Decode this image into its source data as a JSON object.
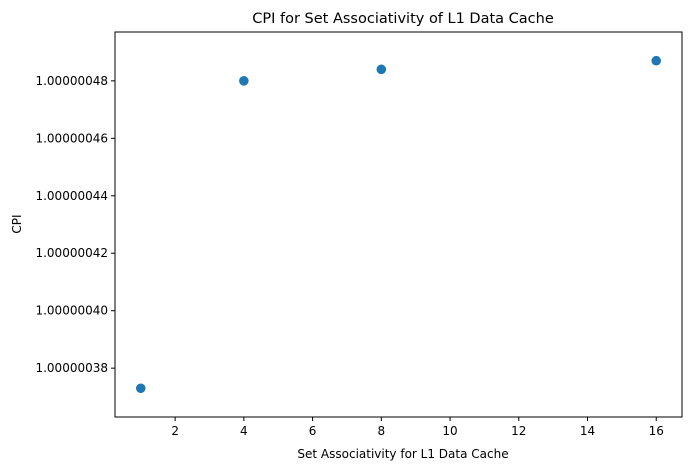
{
  "chart_data": {
    "type": "scatter",
    "title": "CPI for Set Associativity of L1 Data Cache",
    "xlabel": "Set Associativity for L1 Data Cache",
    "ylabel": "CPI",
    "x": [
      1,
      4,
      8,
      16
    ],
    "y": [
      1.000000373,
      1.00000048,
      1.000000484,
      1.000000487
    ],
    "xlim": [
      0.25,
      16.75
    ],
    "ylim": [
      1.000000363,
      1.000000497
    ],
    "xticks": [
      2,
      4,
      6,
      8,
      10,
      12,
      14,
      16
    ],
    "xtick_labels": [
      "2",
      "4",
      "6",
      "8",
      "10",
      "12",
      "14",
      "16"
    ],
    "yticks": [
      1.00000038,
      1.0000004,
      1.00000042,
      1.00000044,
      1.00000046,
      1.00000048
    ],
    "ytick_labels": [
      "1.00000038",
      "1.00000040",
      "1.00000042",
      "1.00000044",
      "1.00000046",
      "1.00000048"
    ],
    "grid": false,
    "marker_color": "#1f77b4"
  }
}
